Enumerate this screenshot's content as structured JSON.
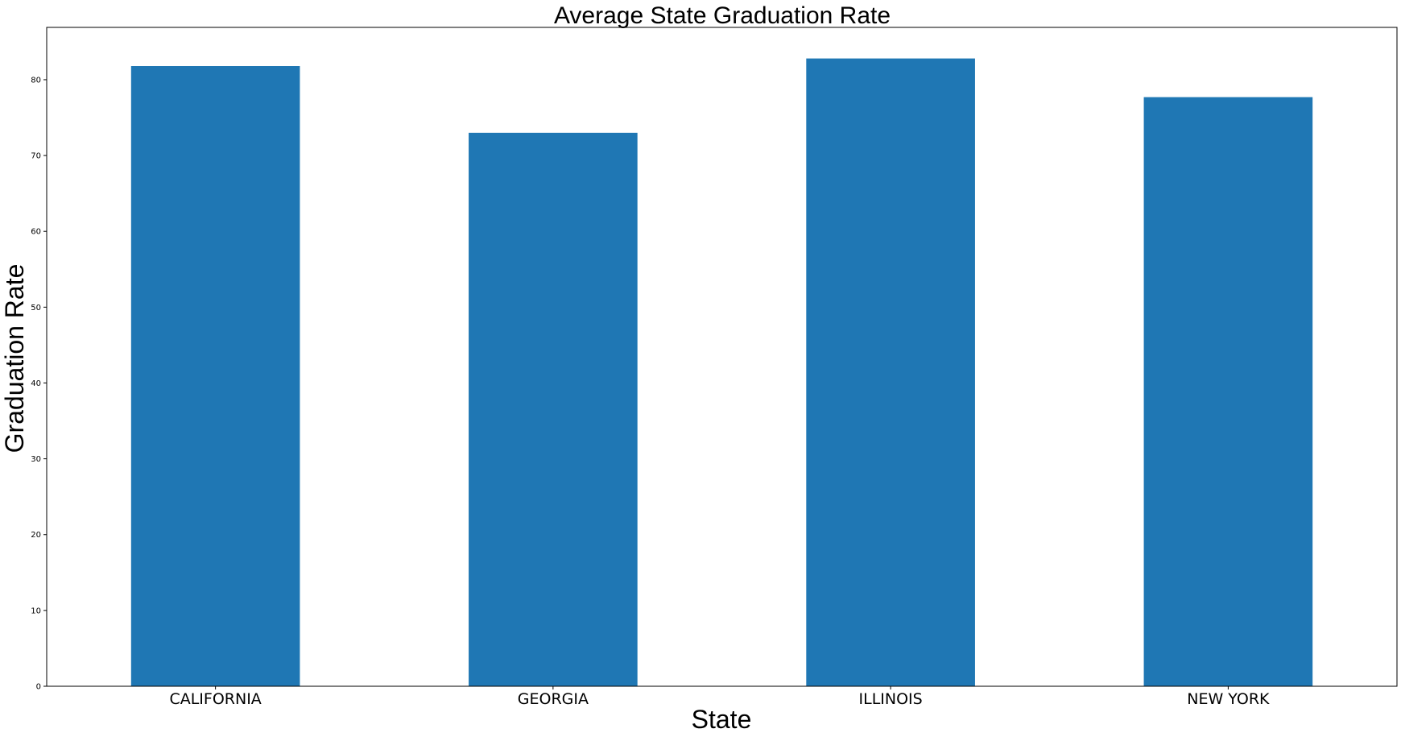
{
  "chart_data": {
    "type": "bar",
    "title": "Average State Graduation Rate",
    "xlabel": "State",
    "ylabel": "Graduation Rate",
    "categories": [
      "CALIFORNIA",
      "GEORGIA",
      "ILLINOIS",
      "NEW YORK"
    ],
    "values": [
      81.8,
      73.0,
      82.8,
      77.7
    ],
    "ylim": [
      0,
      86.9
    ],
    "yticks": [
      0,
      10,
      20,
      30,
      40,
      50,
      60,
      70,
      80
    ],
    "bar_color": "#1f77b4",
    "grid": false,
    "legend": false
  }
}
